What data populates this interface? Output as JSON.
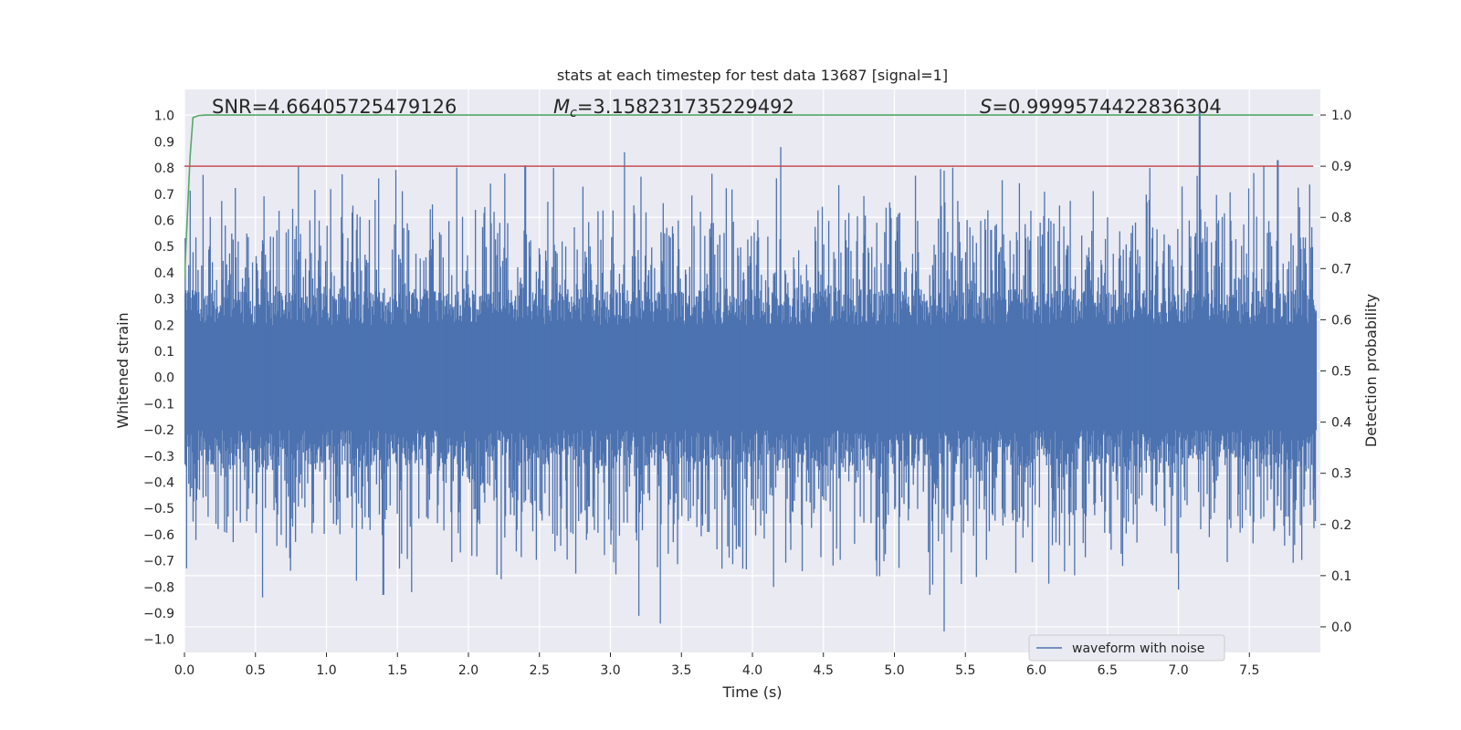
{
  "chart_data": {
    "type": "line",
    "title": "stats at each timestep for test data 13687 [signal=1]",
    "xlabel": "Time (s)",
    "ylabel": "Whitened strain",
    "y2label": "Detection probability",
    "xlim": [
      0.0,
      8.0
    ],
    "ylim": [
      -1.05,
      1.1
    ],
    "y2lim": [
      -0.05,
      1.05
    ],
    "x_ticks": [
      "0.0",
      "0.5",
      "1.0",
      "1.5",
      "2.0",
      "2.5",
      "3.0",
      "3.5",
      "4.0",
      "4.5",
      "5.0",
      "5.5",
      "6.0",
      "6.5",
      "7.0",
      "7.5"
    ],
    "y_ticks": [
      "1.0",
      "0.9",
      "0.8",
      "0.7",
      "0.6",
      "0.5",
      "0.4",
      "0.3",
      "0.2",
      "0.1",
      "0.0",
      "-0.1",
      "-0.2",
      "-0.3",
      "-0.4",
      "-0.5",
      "-0.6",
      "-0.7",
      "-0.8",
      "-0.9",
      "-1.0"
    ],
    "y2_ticks": [
      "1.0",
      "0.9",
      "0.8",
      "0.7",
      "0.6",
      "0.5",
      "0.4",
      "0.3",
      "0.2",
      "0.1",
      "0.0"
    ],
    "grid": true,
    "legend_position": "lower-right",
    "annotations": {
      "snr": {
        "prefix": "SNR=",
        "value": "4.66405725479126"
      },
      "mc": {
        "symbol": "M",
        "sub": "c",
        "value": "=3.158231735229492"
      },
      "s": {
        "symbol": "S",
        "value": "=0.9999574422836304"
      }
    },
    "series": [
      {
        "name": "waveform with noise",
        "axis": "left",
        "color": "#4c72b0",
        "kind": "noise-waveform",
        "notable_extrema": [
          {
            "x": 0.55,
            "y": -0.84
          },
          {
            "x": 1.4,
            "y": -0.83
          },
          {
            "x": 1.6,
            "y": -0.82
          },
          {
            "x": 2.4,
            "y": 0.81
          },
          {
            "x": 2.6,
            "y": 0.8
          },
          {
            "x": 3.1,
            "y": 0.86
          },
          {
            "x": 3.2,
            "y": -0.91
          },
          {
            "x": 3.35,
            "y": -0.94
          },
          {
            "x": 4.2,
            "y": 0.88
          },
          {
            "x": 4.15,
            "y": -0.8
          },
          {
            "x": 5.25,
            "y": -0.83
          },
          {
            "x": 5.35,
            "y": -0.97
          },
          {
            "x": 5.35,
            "y": 0.79
          },
          {
            "x": 6.8,
            "y": 0.8
          },
          {
            "x": 7.0,
            "y": -0.81
          },
          {
            "x": 7.15,
            "y": 1.02
          },
          {
            "x": 7.6,
            "y": 0.81
          },
          {
            "x": 7.7,
            "y": 0.83
          }
        ]
      },
      {
        "axis": "right",
        "color": "#55a868",
        "x": [
          0.0,
          0.02,
          0.04,
          0.06,
          0.1,
          0.15,
          7.95
        ],
        "y": [
          0.68,
          0.8,
          0.92,
          0.995,
          0.999,
          1.0,
          1.0
        ]
      },
      {
        "axis": "right",
        "color": "#c44e52",
        "x": [
          0.0,
          7.95
        ],
        "y": [
          0.9,
          0.9
        ]
      }
    ]
  }
}
